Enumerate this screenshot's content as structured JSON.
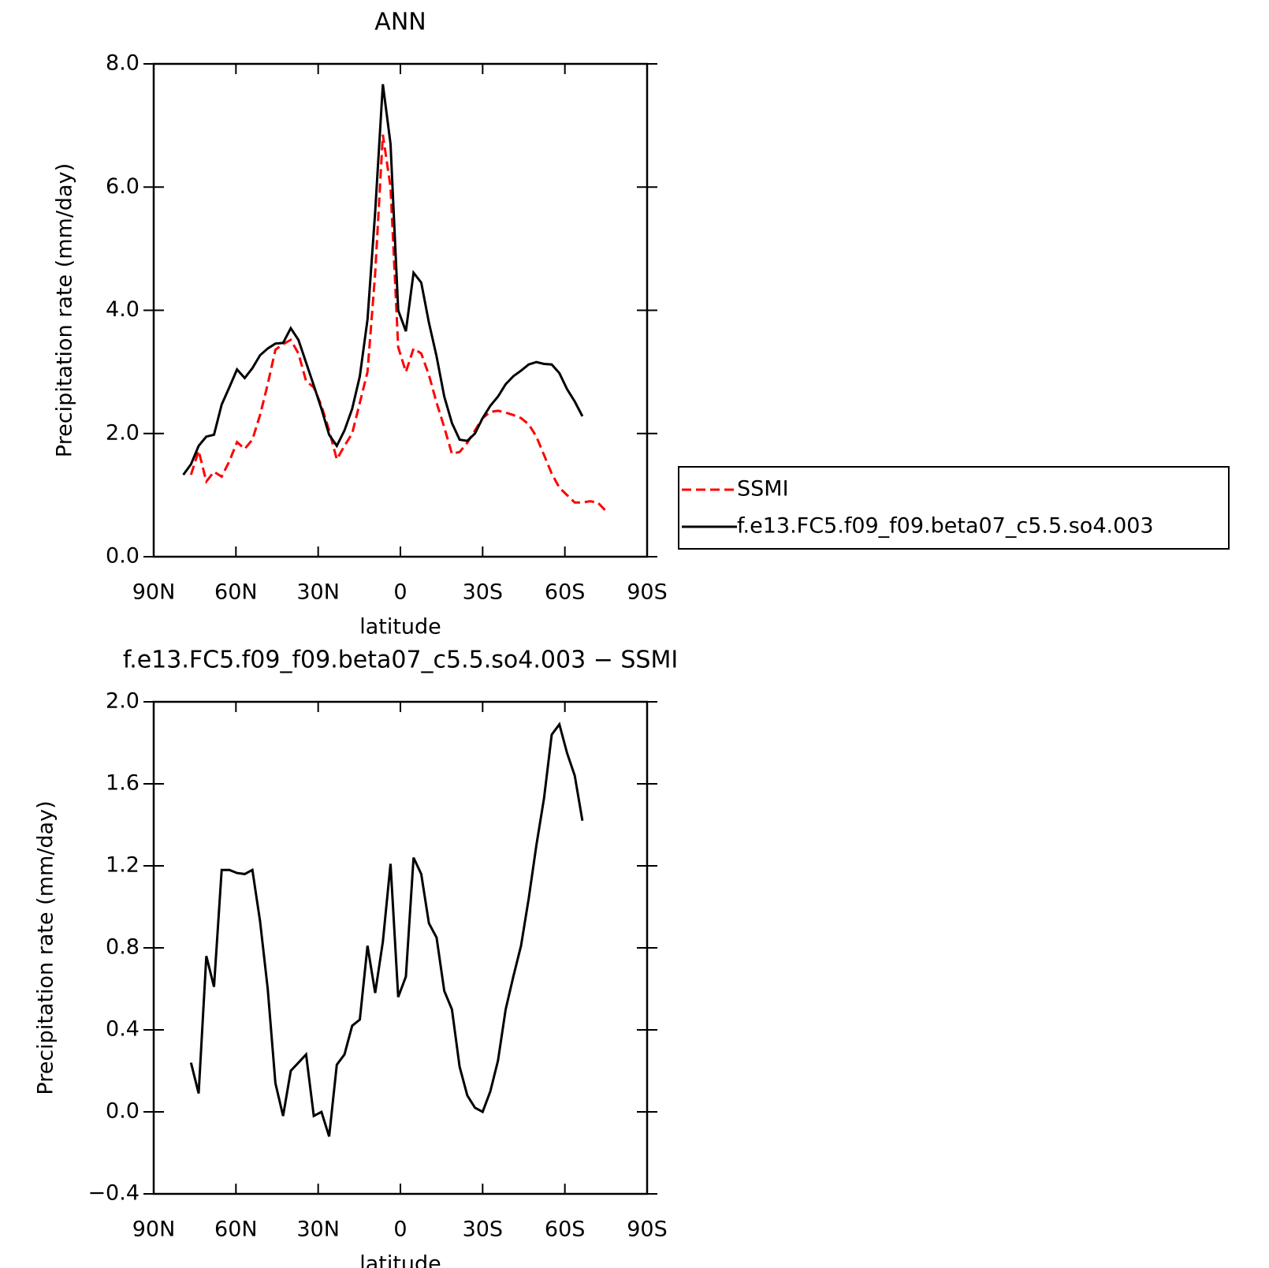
{
  "chart_data": [
    {
      "type": "line",
      "title": "ANN",
      "xlabel": "latitude",
      "ylabel": "Precipitation rate (mm/day)",
      "x": [
        79.2,
        76.4,
        73.6,
        70.8,
        68.0,
        65.2,
        62.4,
        59.6,
        56.8,
        54.0,
        51.2,
        48.4,
        45.6,
        42.8,
        40.0,
        37.2,
        34.4,
        31.6,
        28.8,
        26.0,
        23.2,
        20.4,
        17.6,
        14.8,
        12.0,
        9.2,
        6.4,
        3.6,
        0.8,
        -2.0,
        -4.8,
        -7.6,
        -10.4,
        -13.2,
        -16.0,
        -18.8,
        -21.6,
        -24.4,
        -27.2,
        -30.0,
        -32.8,
        -35.6,
        -38.4,
        -41.2,
        -44.0,
        -46.8,
        -49.6,
        -52.4,
        -55.2,
        -58.0,
        -60.8,
        -63.6,
        -66.4,
        -69.2,
        -72.0,
        -74.8
      ],
      "series": [
        {
          "name": "SSMI",
          "color": "#ff0000",
          "dashed": true,
          "values": [
            null,
            1.33,
            1.72,
            1.22,
            1.38,
            1.3,
            1.55,
            1.86,
            1.75,
            1.9,
            2.3,
            2.8,
            3.36,
            3.45,
            3.52,
            3.3,
            2.85,
            2.75,
            2.45,
            2.05,
            1.58,
            1.8,
            2.0,
            2.5,
            3.0,
            4.6,
            6.85,
            6.0,
            3.4,
            3.0,
            3.38,
            3.3,
            2.95,
            2.5,
            2.1,
            1.67,
            1.7,
            1.85,
            2.05,
            2.25,
            2.35,
            2.37,
            2.34,
            2.3,
            2.25,
            2.15,
            1.95,
            1.65,
            1.35,
            1.12,
            1.0,
            0.88,
            0.88,
            0.9,
            0.88,
            0.75
          ]
        },
        {
          "name": "f.e13.FC5.f09_f09.beta07_c5.5.so4.003",
          "color": "#000000",
          "dashed": false,
          "values": [
            1.33,
            1.5,
            1.8,
            1.95,
            1.98,
            2.47,
            2.75,
            3.04,
            2.9,
            3.06,
            3.27,
            3.38,
            3.46,
            3.47,
            3.71,
            3.52,
            3.15,
            2.78,
            2.4,
            1.98,
            1.8,
            2.05,
            2.4,
            2.93,
            3.85,
            5.6,
            7.67,
            6.7,
            4.0,
            3.66,
            4.61,
            4.45,
            3.8,
            3.25,
            2.6,
            2.17,
            1.9,
            1.88,
            2.0,
            2.25,
            2.45,
            2.6,
            2.8,
            2.93,
            3.02,
            3.12,
            3.16,
            3.13,
            3.12,
            2.98,
            2.72,
            2.52,
            2.28,
            null,
            null,
            null
          ]
        }
      ],
      "xlim": [
        90,
        -90
      ],
      "xticks": [
        {
          "value": 90,
          "label": "90N"
        },
        {
          "value": 60,
          "label": "60N"
        },
        {
          "value": 30,
          "label": "30N"
        },
        0,
        {
          "value": -30,
          "label": "30S"
        },
        {
          "value": -60,
          "label": "60S"
        },
        {
          "value": -90,
          "label": "90S"
        }
      ],
      "ylim": [
        0,
        8
      ],
      "yticks": [
        {
          "value": 0,
          "label": "0.0"
        },
        {
          "value": 2,
          "label": "2.0"
        },
        {
          "value": 4,
          "label": "4.0"
        },
        {
          "value": 6,
          "label": "6.0"
        },
        {
          "value": 8,
          "label": "8.0"
        }
      ],
      "legend": "right"
    },
    {
      "type": "line",
      "title": "f.e13.FC5.f09_f09.beta07_c5.5.so4.003 − SSMI",
      "xlabel": "latitude",
      "ylabel": "Precipitation rate (mm/day)",
      "x": [
        76.4,
        73.6,
        70.8,
        68.0,
        65.2,
        62.4,
        59.6,
        56.8,
        54.0,
        51.2,
        48.4,
        45.6,
        42.8,
        40.0,
        37.2,
        34.4,
        31.6,
        28.8,
        26.0,
        23.2,
        20.4,
        17.6,
        14.8,
        12.0,
        9.2,
        6.4,
        3.6,
        0.8,
        -2.0,
        -4.8,
        -7.6,
        -10.4,
        -13.2,
        -16.0,
        -18.8,
        -21.6,
        -24.4,
        -27.2,
        -30.0,
        -32.8,
        -35.6,
        -38.4,
        -41.2,
        -44.0,
        -46.8,
        -49.6,
        -52.4,
        -55.2,
        -58.0,
        -60.8,
        -63.6,
        -66.4
      ],
      "series": [
        {
          "color": "#000000",
          "dashed": false,
          "values": [
            0.24,
            0.09,
            0.76,
            0.61,
            1.18,
            1.18,
            1.165,
            1.16,
            1.18,
            0.93,
            0.6,
            0.14,
            -0.02,
            0.2,
            0.24,
            0.28,
            -0.02,
            0.0,
            -0.12,
            0.23,
            0.28,
            0.42,
            0.45,
            0.81,
            0.58,
            0.83,
            1.21,
            0.56,
            0.66,
            1.24,
            1.16,
            0.92,
            0.85,
            0.59,
            0.5,
            0.22,
            0.08,
            0.02,
            0.0,
            0.1,
            0.25,
            0.5,
            0.66,
            0.81,
            1.04,
            1.3,
            1.53,
            1.84,
            1.89,
            1.75,
            1.64,
            1.42
          ]
        }
      ],
      "xlim": [
        90,
        -90
      ],
      "xticks": [
        {
          "value": 90,
          "label": "90N"
        },
        {
          "value": 60,
          "label": "60N"
        },
        {
          "value": 30,
          "label": "30N"
        },
        0,
        {
          "value": -30,
          "label": "30S"
        },
        {
          "value": -60,
          "label": "60S"
        },
        {
          "value": -90,
          "label": "90S"
        }
      ],
      "ylim": [
        -0.4,
        2.0
      ],
      "yticks": [
        {
          "value": -0.4,
          "label": "−0.4"
        },
        {
          "value": 0,
          "label": "0.0"
        },
        {
          "value": 0.4,
          "label": "0.4"
        },
        {
          "value": 0.8,
          "label": "0.8"
        },
        {
          "value": 1.2,
          "label": "1.2"
        },
        {
          "value": 1.6,
          "label": "1.6"
        },
        {
          "value": 2.0,
          "label": "2.0"
        }
      ]
    }
  ]
}
